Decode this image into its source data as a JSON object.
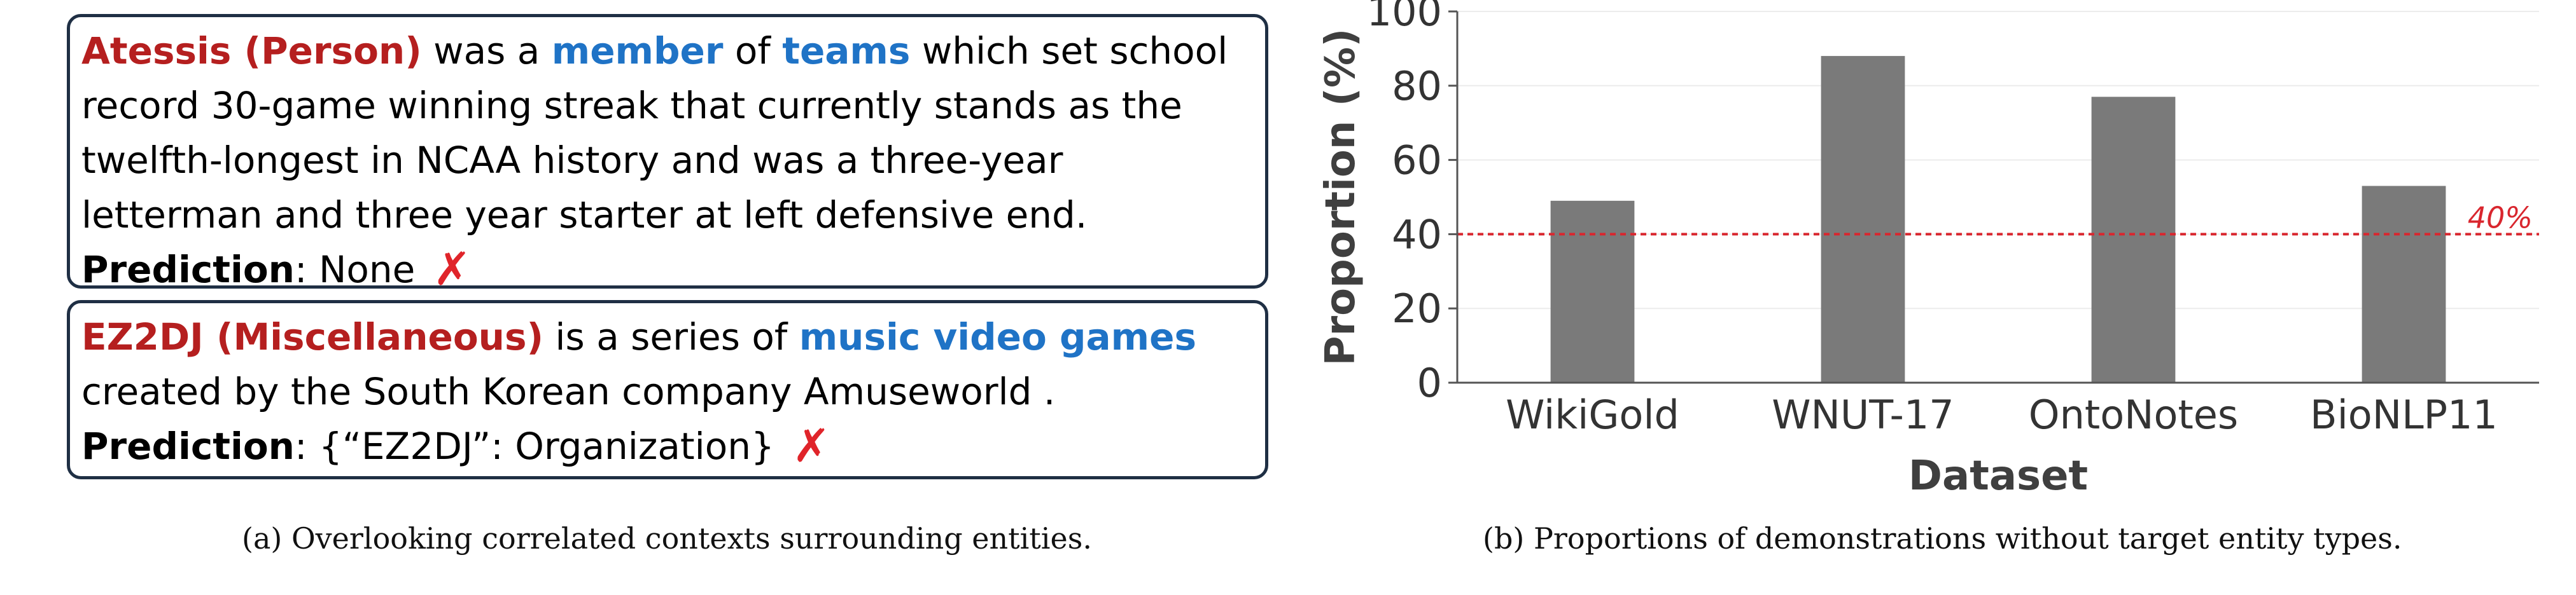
{
  "panel_a": {
    "example1": {
      "entity": "Atessis (Person)",
      "t1": " was a ",
      "rel1": "member",
      "t2": " of ",
      "rel2": "teams",
      "t3": " which set school record 30-game winning streak that currently stands as the twelfth-longest in NCAA history and was a three-year letterman and three year starter at left defensive end.",
      "pred_label": "Prediction",
      "pred_value": ": None",
      "mark": "✗"
    },
    "example2": {
      "entity": "EZ2DJ (Miscellaneous)",
      "t1": " is a series of ",
      "rel1": "music video games",
      "t2": " created by the South Korean company Amuseworld .",
      "pred_label": "Prediction",
      "pred_value": ": {“EZ2DJ”: Organization}",
      "mark": "✗"
    },
    "caption": "(a)  Overlooking correlated contexts surrounding entities."
  },
  "panel_b": {
    "caption": "(b)  Proportions of demonstrations without target entity types."
  },
  "chart_data": {
    "type": "bar",
    "categories": [
      "WikiGold",
      "WNUT-17",
      "OntoNotes",
      "BioNLP11"
    ],
    "values": [
      49,
      88,
      77,
      53
    ],
    "xlabel": "Dataset",
    "ylabel": "Proportion (%)",
    "ylim": [
      0,
      100
    ],
    "yticks": [
      0,
      20,
      40,
      60,
      80,
      100
    ],
    "grid": true,
    "bar_color": "#7a7a7a",
    "reference_line": {
      "value": 40,
      "label": "40%",
      "color": "#d9262e",
      "style": "dashed"
    }
  }
}
